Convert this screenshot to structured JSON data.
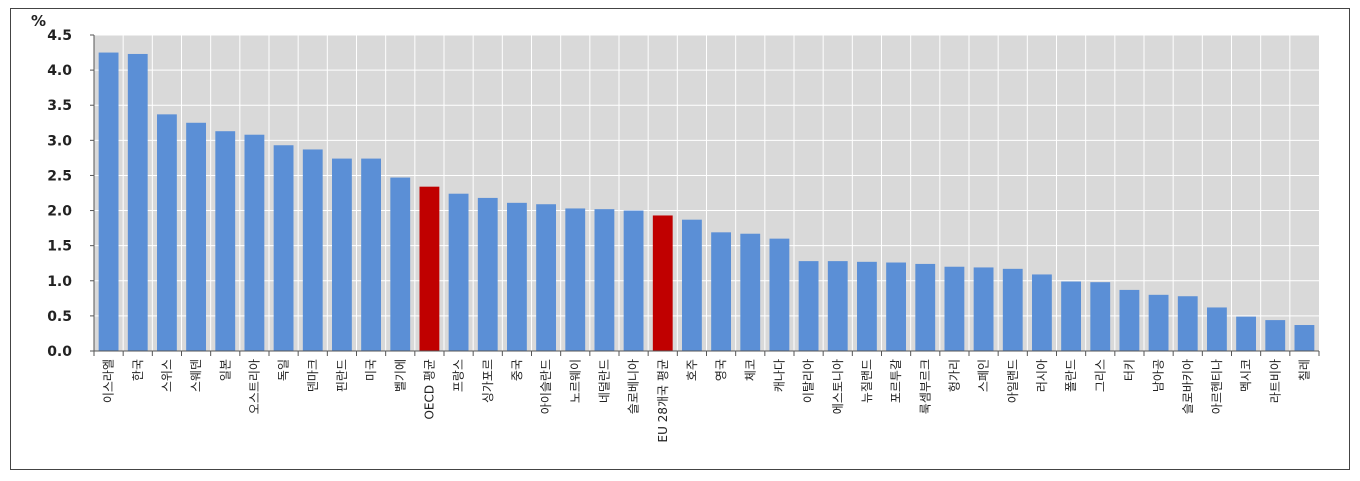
{
  "chart_data": {
    "type": "bar",
    "unit_label": "%",
    "ylim": [
      0,
      4.5
    ],
    "yticks": [
      "0.0",
      "0.5",
      "1.0",
      "1.5",
      "2.0",
      "2.5",
      "3.0",
      "3.5",
      "4.0",
      "4.5"
    ],
    "grid": true,
    "colors": {
      "default": "#5b8fd6",
      "highlight": "#c00000",
      "plot_bg": "#d9d9d9",
      "grid": "#ffffff"
    },
    "categories": [
      "이스라엘",
      "한국",
      "스위스",
      "스웨덴",
      "일본",
      "오스트리아",
      "독일",
      "덴마크",
      "핀란드",
      "미국",
      "벨기에",
      "OECD 평균",
      "프랑스",
      "싱가포르",
      "중국",
      "아이슬란드",
      "노르웨이",
      "네덜란드",
      "슬로베니아",
      "EU 28개국 평균",
      "호주",
      "영국",
      "체코",
      "캐나다",
      "이탈리아",
      "에스토니아",
      "뉴질랜드",
      "포르투갈",
      "룩셈부르크",
      "헝가리",
      "스페인",
      "아일랜드",
      "러시아",
      "폴란드",
      "그리스",
      "터키",
      "남아공",
      "슬로바키아",
      "아르헨티나",
      "멕시코",
      "라트비아",
      "칠레"
    ],
    "values": [
      4.25,
      4.23,
      3.37,
      3.25,
      3.13,
      3.08,
      2.93,
      2.87,
      2.74,
      2.74,
      2.47,
      2.34,
      2.24,
      2.18,
      2.11,
      2.09,
      2.03,
      2.02,
      2.0,
      1.93,
      1.87,
      1.69,
      1.67,
      1.6,
      1.28,
      1.28,
      1.27,
      1.26,
      1.24,
      1.2,
      1.19,
      1.17,
      1.09,
      0.99,
      0.98,
      0.87,
      0.8,
      0.78,
      0.62,
      0.49,
      0.44,
      0.37
    ],
    "highlight": [
      "OECD 평균",
      "EU 28개국 평균"
    ]
  }
}
